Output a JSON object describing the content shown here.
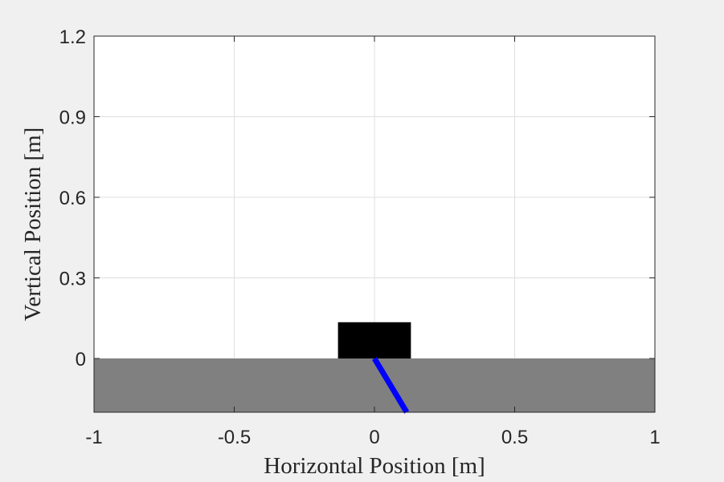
{
  "chart_data": {
    "type": "scatter",
    "title": "",
    "xlabel": "Horizontal Position [m]",
    "ylabel": "Vertical Position [m]",
    "xlim": [
      -1,
      1
    ],
    "ylim": [
      -0.2,
      1.2
    ],
    "x_ticks": [
      -1,
      -0.5,
      0,
      0.5,
      1
    ],
    "x_tick_labels": [
      "-1",
      "-0.5",
      "0",
      "0.5",
      "1"
    ],
    "y_ticks": [
      0,
      0.3,
      0.6,
      0.9,
      1.2
    ],
    "y_tick_labels": [
      "0",
      "0.3",
      "0.6",
      "0.9",
      "1.2"
    ],
    "grid": true,
    "ground": {
      "top": 0,
      "color": "#808080"
    },
    "body": {
      "x_range": [
        -0.13,
        0.13
      ],
      "y_range": [
        0,
        0.135
      ],
      "color": "#000000"
    },
    "leg": {
      "x": [
        0,
        0.115
      ],
      "y": [
        0,
        -0.2
      ],
      "color": "#0000ff"
    },
    "colors": {
      "figure_background": "#f0f0f0",
      "axes_background": "#ffffff",
      "grid": "#dfdfdf",
      "axis": "#262626"
    }
  }
}
